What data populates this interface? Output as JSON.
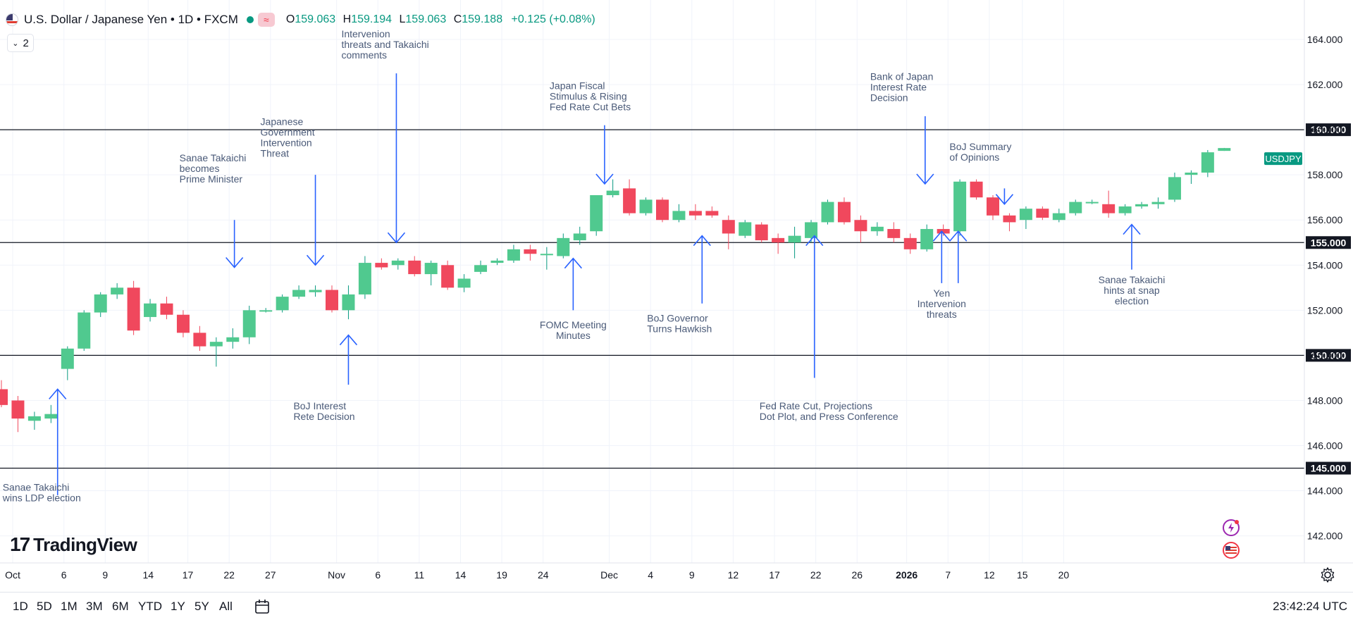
{
  "header": {
    "symbol_title": "U.S. Dollar / Japanese Yen • 1D • FXCM",
    "indicator_glyph": "≈",
    "open_label": "O",
    "open": "159.063",
    "high_label": "H",
    "high": "159.194",
    "low_label": "L",
    "low": "159.063",
    "close_label": "C",
    "close": "159.188",
    "change": "+0.125 (+0.08%)",
    "collapse_count": "2"
  },
  "brand": {
    "name": "TradingView"
  },
  "toolbar": {
    "ranges": [
      "1D",
      "5D",
      "1M",
      "3M",
      "6M",
      "YTD",
      "1Y",
      "5Y",
      "All"
    ],
    "clock": "23:42:24 UTC"
  },
  "icons": [
    "flag-icon",
    "status-dot-icon",
    "chevron-down-icon",
    "calendar-icon",
    "gear-icon",
    "bolt-icon",
    "us-flag-icon"
  ],
  "colors": {
    "up": "#089981",
    "up_body": "#50c98f",
    "down": "#f0485d",
    "annotation": "#2962ff",
    "annotation_text": "#4a5a78"
  },
  "chart_data": {
    "type": "candlestick",
    "symbol": "USDJPY",
    "price_label": "USDJPY",
    "ylim": [
      140.8,
      165.5
    ],
    "y_ticks": [
      "142.000",
      "144.000",
      "146.000",
      "148.000",
      "150.000",
      "152.000",
      "154.000",
      "156.000",
      "158.000",
      "160.000",
      "162.000",
      "164.000"
    ],
    "x_ticks": [
      "Oct",
      "6",
      "9",
      "14",
      "17",
      "22",
      "27",
      "Nov",
      "6",
      "11",
      "14",
      "19",
      "24",
      "Dec",
      "4",
      "9",
      "12",
      "17",
      "22",
      "26",
      "2026",
      "7",
      "12",
      "15",
      "20"
    ],
    "horizontal_levels": [
      {
        "value": 160.0,
        "label": "160.000"
      },
      {
        "value": 155.0,
        "label": "155.000"
      },
      {
        "value": 150.0,
        "label": "150.000"
      },
      {
        "value": 145.0,
        "label": "145.000"
      }
    ],
    "candles": [
      {
        "o": 148.5,
        "h": 148.9,
        "l": 147.7,
        "c": 147.8
      },
      {
        "o": 148.0,
        "h": 148.2,
        "l": 146.6,
        "c": 147.2
      },
      {
        "o": 147.1,
        "h": 147.5,
        "l": 146.7,
        "c": 147.3
      },
      {
        "o": 147.2,
        "h": 147.8,
        "l": 147.0,
        "c": 147.4
      },
      {
        "o": 149.4,
        "h": 150.4,
        "l": 148.9,
        "c": 150.3
      },
      {
        "o": 150.3,
        "h": 152.0,
        "l": 150.2,
        "c": 151.9
      },
      {
        "o": 151.9,
        "h": 152.8,
        "l": 151.7,
        "c": 152.7
      },
      {
        "o": 152.7,
        "h": 153.2,
        "l": 152.5,
        "c": 153.0
      },
      {
        "o": 153.0,
        "h": 153.3,
        "l": 150.9,
        "c": 151.1
      },
      {
        "o": 151.7,
        "h": 152.5,
        "l": 151.5,
        "c": 152.3
      },
      {
        "o": 152.3,
        "h": 152.6,
        "l": 151.6,
        "c": 151.8
      },
      {
        "o": 151.8,
        "h": 152.0,
        "l": 150.8,
        "c": 151.0
      },
      {
        "o": 151.0,
        "h": 151.3,
        "l": 150.2,
        "c": 150.4
      },
      {
        "o": 150.4,
        "h": 150.8,
        "l": 149.5,
        "c": 150.6
      },
      {
        "o": 150.6,
        "h": 151.2,
        "l": 150.3,
        "c": 150.8
      },
      {
        "o": 150.8,
        "h": 152.2,
        "l": 150.5,
        "c": 152.0
      },
      {
        "o": 152.0,
        "h": 152.1,
        "l": 151.9,
        "c": 152.0
      },
      {
        "o": 152.0,
        "h": 152.7,
        "l": 151.9,
        "c": 152.6
      },
      {
        "o": 152.6,
        "h": 153.1,
        "l": 152.5,
        "c": 152.9
      },
      {
        "o": 152.8,
        "h": 153.1,
        "l": 152.6,
        "c": 152.9
      },
      {
        "o": 152.9,
        "h": 153.1,
        "l": 151.9,
        "c": 152.0
      },
      {
        "o": 152.0,
        "h": 153.1,
        "l": 151.6,
        "c": 152.7
      },
      {
        "o": 152.7,
        "h": 154.4,
        "l": 152.5,
        "c": 154.1
      },
      {
        "o": 154.1,
        "h": 154.3,
        "l": 153.8,
        "c": 153.9
      },
      {
        "o": 154.0,
        "h": 154.3,
        "l": 153.8,
        "c": 154.2
      },
      {
        "o": 154.2,
        "h": 154.4,
        "l": 153.5,
        "c": 153.6
      },
      {
        "o": 153.6,
        "h": 154.2,
        "l": 153.1,
        "c": 154.1
      },
      {
        "o": 154.0,
        "h": 154.2,
        "l": 152.9,
        "c": 153.0
      },
      {
        "o": 153.0,
        "h": 153.6,
        "l": 152.8,
        "c": 153.4
      },
      {
        "o": 153.7,
        "h": 154.2,
        "l": 153.6,
        "c": 154.0
      },
      {
        "o": 154.1,
        "h": 154.3,
        "l": 154.0,
        "c": 154.2
      },
      {
        "o": 154.2,
        "h": 154.9,
        "l": 154.1,
        "c": 154.7
      },
      {
        "o": 154.7,
        "h": 154.9,
        "l": 154.2,
        "c": 154.5
      },
      {
        "o": 154.5,
        "h": 154.8,
        "l": 153.8,
        "c": 154.5
      },
      {
        "o": 154.4,
        "h": 155.4,
        "l": 154.3,
        "c": 155.2
      },
      {
        "o": 155.1,
        "h": 155.7,
        "l": 154.9,
        "c": 155.4
      },
      {
        "o": 155.5,
        "h": 157.1,
        "l": 155.3,
        "c": 157.1
      },
      {
        "o": 157.1,
        "h": 157.8,
        "l": 157.0,
        "c": 157.3
      },
      {
        "o": 157.4,
        "h": 157.8,
        "l": 156.2,
        "c": 156.3
      },
      {
        "o": 156.3,
        "h": 157.0,
        "l": 156.2,
        "c": 156.9
      },
      {
        "o": 156.9,
        "h": 157.0,
        "l": 155.9,
        "c": 156.0
      },
      {
        "o": 156.0,
        "h": 156.7,
        "l": 155.9,
        "c": 156.4
      },
      {
        "o": 156.4,
        "h": 156.7,
        "l": 156.0,
        "c": 156.2
      },
      {
        "o": 156.4,
        "h": 156.6,
        "l": 156.1,
        "c": 156.2
      },
      {
        "o": 156.0,
        "h": 156.2,
        "l": 154.7,
        "c": 155.4
      },
      {
        "o": 155.3,
        "h": 156.0,
        "l": 155.2,
        "c": 155.9
      },
      {
        "o": 155.8,
        "h": 155.9,
        "l": 155.0,
        "c": 155.1
      },
      {
        "o": 155.2,
        "h": 155.4,
        "l": 154.5,
        "c": 155.0
      },
      {
        "o": 155.0,
        "h": 155.7,
        "l": 154.3,
        "c": 155.3
      },
      {
        "o": 155.2,
        "h": 156.0,
        "l": 155.0,
        "c": 155.9
      },
      {
        "o": 155.9,
        "h": 156.9,
        "l": 155.8,
        "c": 156.8
      },
      {
        "o": 156.8,
        "h": 157.0,
        "l": 155.8,
        "c": 155.9
      },
      {
        "o": 156.0,
        "h": 156.2,
        "l": 155.0,
        "c": 155.5
      },
      {
        "o": 155.5,
        "h": 155.9,
        "l": 155.3,
        "c": 155.7
      },
      {
        "o": 155.6,
        "h": 155.9,
        "l": 155.0,
        "c": 155.2
      },
      {
        "o": 155.2,
        "h": 155.4,
        "l": 154.5,
        "c": 154.7
      },
      {
        "o": 154.7,
        "h": 155.8,
        "l": 154.6,
        "c": 155.6
      },
      {
        "o": 155.6,
        "h": 155.8,
        "l": 155.3,
        "c": 155.4
      },
      {
        "o": 155.5,
        "h": 157.8,
        "l": 155.3,
        "c": 157.7
      },
      {
        "o": 157.7,
        "h": 157.8,
        "l": 156.9,
        "c": 157.0
      },
      {
        "o": 157.0,
        "h": 157.1,
        "l": 156.0,
        "c": 156.2
      },
      {
        "o": 156.2,
        "h": 156.3,
        "l": 155.5,
        "c": 155.9
      },
      {
        "o": 156.0,
        "h": 156.6,
        "l": 155.6,
        "c": 156.5
      },
      {
        "o": 156.5,
        "h": 156.6,
        "l": 156.0,
        "c": 156.1
      },
      {
        "o": 156.0,
        "h": 156.5,
        "l": 155.9,
        "c": 156.3
      },
      {
        "o": 156.3,
        "h": 156.9,
        "l": 156.2,
        "c": 156.8
      },
      {
        "o": 156.8,
        "h": 156.9,
        "l": 156.7,
        "c": 156.8
      },
      {
        "o": 156.7,
        "h": 157.3,
        "l": 156.1,
        "c": 156.3
      },
      {
        "o": 156.3,
        "h": 156.7,
        "l": 156.2,
        "c": 156.6
      },
      {
        "o": 156.6,
        "h": 156.8,
        "l": 156.5,
        "c": 156.7
      },
      {
        "o": 156.7,
        "h": 157.0,
        "l": 156.5,
        "c": 156.8
      },
      {
        "o": 156.9,
        "h": 158.1,
        "l": 156.8,
        "c": 157.9
      },
      {
        "o": 158.0,
        "h": 158.2,
        "l": 157.6,
        "c": 158.1
      },
      {
        "o": 158.1,
        "h": 159.1,
        "l": 157.9,
        "c": 159.0
      },
      {
        "o": 159.063,
        "h": 159.194,
        "l": 159.063,
        "c": 159.188
      }
    ],
    "annotations": [
      {
        "text": [
          "Sanae Takaichi",
          "wins LDP election"
        ],
        "x_index": 3.4,
        "arrow": "up",
        "arrow_from": 143.8,
        "arrow_to": 148.5,
        "text_at": 144.0,
        "align": "left"
      },
      {
        "text": [
          "Sanae Takaichi",
          "becomes",
          "Prime Minister"
        ],
        "x_index": 14.1,
        "arrow": "down",
        "arrow_from": 156.0,
        "arrow_to": 153.9,
        "text_at": 158.6,
        "align": "left"
      },
      {
        "text": [
          "Japanese",
          "Government",
          "Intervention",
          "Threat"
        ],
        "x_index": 19.0,
        "arrow": "down",
        "arrow_from": 158.0,
        "arrow_to": 154.0,
        "text_at": 160.2,
        "align": "left"
      },
      {
        "text": [
          "Intervenion",
          "threats and Takaichi",
          "comments"
        ],
        "x_index": 23.9,
        "arrow": "down",
        "arrow_from": 162.5,
        "arrow_to": 155.0,
        "text_at": 164.1,
        "align": "left"
      },
      {
        "text": [
          "BoJ Interest",
          "Rete Decision"
        ],
        "x_index": 21.0,
        "arrow": "up",
        "arrow_from": 148.7,
        "arrow_to": 150.9,
        "text_at": 147.6,
        "align": "left"
      },
      {
        "text": [
          "FOMC Meeting",
          "Minutes"
        ],
        "x_index": 34.6,
        "arrow": "up",
        "arrow_from": 152.0,
        "arrow_to": 154.3,
        "text_at": 151.2,
        "align": "center"
      },
      {
        "text": [
          "Japan Fiscal",
          "Stimulus & Rising",
          "Fed Rate Cut Bets"
        ],
        "x_index": 36.5,
        "arrow": "down",
        "arrow_from": 160.2,
        "arrow_to": 157.6,
        "text_at": 161.8,
        "align": "left"
      },
      {
        "text": [
          "BoJ Governor",
          "Turns Hawkish"
        ],
        "x_index": 42.4,
        "arrow": "up",
        "arrow_from": 152.3,
        "arrow_to": 155.3,
        "text_at": 151.5,
        "align": "left"
      },
      {
        "text": [
          "Fed Rate Cut, Projections",
          "Dot Plot, and Press Conference"
        ],
        "x_index": 49.2,
        "arrow": "up",
        "arrow_from": 149.0,
        "arrow_to": 155.3,
        "text_at": 147.6,
        "align": "left"
      },
      {
        "text": [
          "Bank of Japan",
          "Interest Rate",
          "Decision"
        ],
        "x_index": 55.9,
        "arrow": "down",
        "arrow_from": 160.6,
        "arrow_to": 157.6,
        "text_at": 162.2,
        "align": "left"
      },
      {
        "text": [
          "Yen",
          "Intervenion",
          "threats"
        ],
        "x_index": 56.9,
        "arrow": "up",
        "arrow_from": 153.2,
        "arrow_to": 155.5,
        "text_at": 152.6,
        "align": "center"
      },
      {
        "text": [],
        "x_index": 57.9,
        "arrow": "up",
        "arrow_from": 153.2,
        "arrow_to": 155.5,
        "text_at": 152.6,
        "align": "center"
      },
      {
        "text": [
          "BoJ Summary",
          "of Opinions"
        ],
        "x_index": 60.7,
        "arrow": "down",
        "arrow_from": 157.4,
        "arrow_to": 156.7,
        "text_at": 159.1,
        "align": "left"
      },
      {
        "text": [
          "Sanae Takaichi",
          "hints at snap",
          "election"
        ],
        "x_index": 68.4,
        "arrow": "up",
        "arrow_from": 153.8,
        "arrow_to": 155.8,
        "text_at": 153.2,
        "align": "center"
      }
    ]
  }
}
